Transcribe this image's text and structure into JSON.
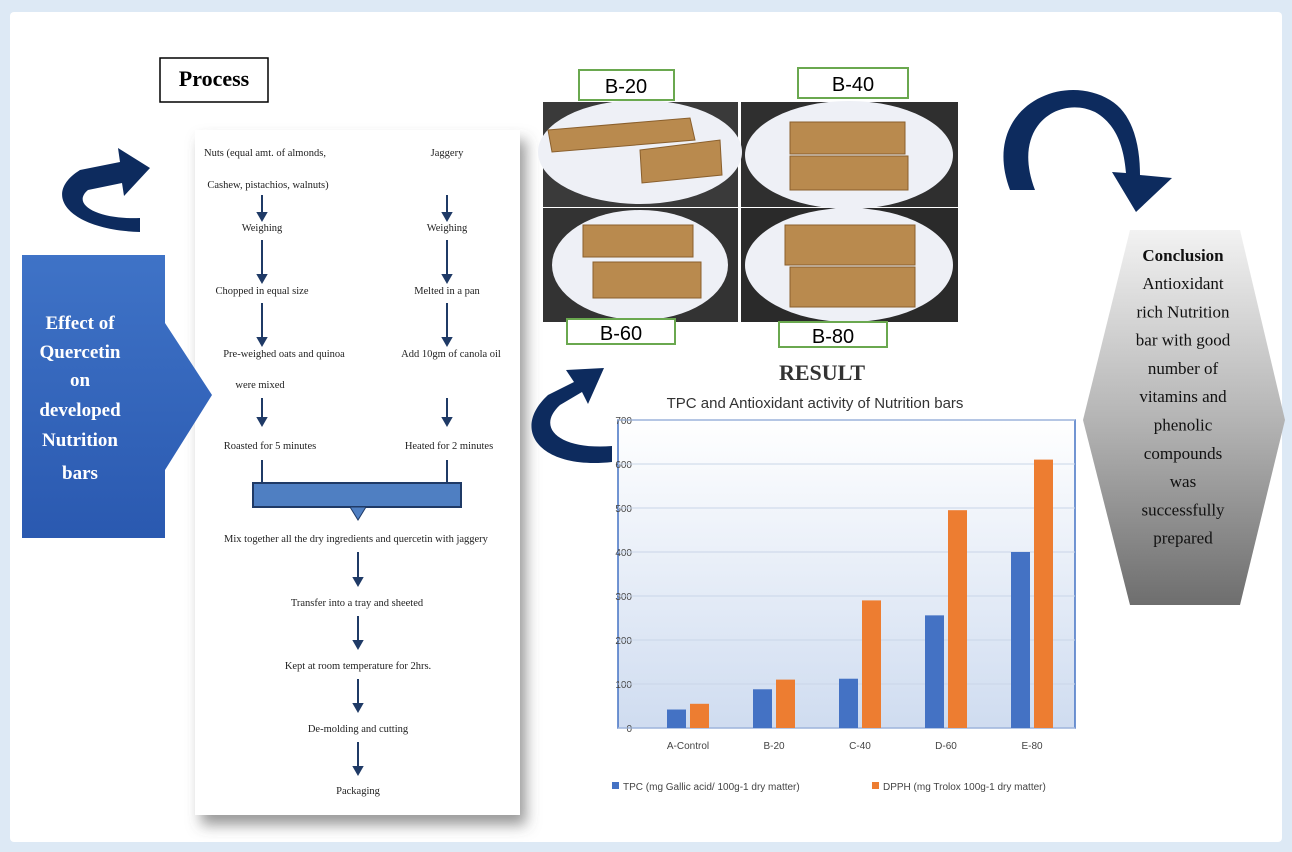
{
  "process": {
    "title": "Process",
    "left": [
      "Nuts (equal amt. of almonds,",
      "Cashew, pistachios, walnuts)",
      "Weighing",
      "Chopped in equal size",
      "Pre-weighed oats and quinoa",
      "were mixed",
      "Roasted for 5 minutes"
    ],
    "right": [
      "Jaggery",
      "Weighing",
      "Melted in a pan",
      "Add 10gm of canola oil",
      "Heated for 2 minutes"
    ],
    "steps": [
      "Mix together all the dry ingredients and quercetin with jaggery",
      "Transfer into a tray and sheeted",
      "Kept at room temperature for 2hrs.",
      "De-molding and cutting",
      "Packaging"
    ]
  },
  "effect": [
    "Effect of",
    "Quercetin",
    "on",
    "developed",
    "Nutrition",
    "bars"
  ],
  "samples": [
    "B-20",
    "B-40",
    "B-60",
    "B-80"
  ],
  "result": "RESULT",
  "chart_data": {
    "type": "bar",
    "title": "TPC and Antioxidant activity of Nutrition  bars",
    "categories": [
      "A-Control",
      "B-20",
      "C-40",
      "D-60",
      "E-80"
    ],
    "series": [
      {
        "name": "TPC (mg Gallic acid/ 100g-1 dry matter)",
        "color": "#4472c4",
        "values": [
          42,
          88,
          112,
          256,
          400
        ]
      },
      {
        "name": "DPPH (mg Trolox 100g-1 dry matter)",
        "color": "#ed7d31",
        "values": [
          55,
          110,
          290,
          495,
          610
        ]
      }
    ],
    "ylim": [
      0,
      700
    ],
    "yticks": [
      0,
      100,
      200,
      300,
      400,
      500,
      600,
      700
    ],
    "grid": true,
    "legend": "bottom"
  },
  "conclusion": {
    "title": "Conclusion",
    "lines": [
      "Antioxidant",
      "rich Nutrition",
      "bar  with good",
      "number of",
      "vitamins and",
      "phenolic",
      "compounds",
      "was",
      "successfully",
      "prepared"
    ]
  }
}
